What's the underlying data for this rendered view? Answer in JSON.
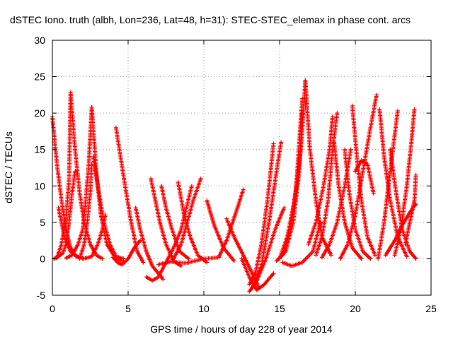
{
  "chart_data": {
    "type": "scatter",
    "title": "dSTEC Iono. truth (albh, Lon=236, Lat=48, h=31): STEC-STEC_elemax in phase cont. arcs",
    "xlabel": "GPS time / hours of day 228 of year 2014",
    "ylabel": "dSTEC  / TECUs",
    "xlim": [
      0,
      25
    ],
    "ylim": [
      -5,
      30
    ],
    "xticks": [
      0,
      5,
      10,
      15,
      20,
      25
    ],
    "yticks": [
      -5,
      0,
      5,
      10,
      15,
      20,
      25,
      30
    ],
    "xtick_labels": [
      "0",
      "5",
      "10",
      "15",
      "20",
      "25"
    ],
    "ytick_labels": [
      "-5",
      "0",
      "5",
      "10",
      "15",
      "20",
      "25",
      "30"
    ],
    "grid": true,
    "marker": "plus",
    "color": "#ff0000",
    "series": [
      {
        "points": [
          [
            0.0,
            19.5
          ],
          [
            0.3,
            13
          ],
          [
            0.6,
            8
          ],
          [
            0.9,
            4
          ],
          [
            1.2,
            1.5
          ],
          [
            1.5,
            0.5
          ],
          [
            1.8,
            0.1
          ]
        ]
      },
      {
        "points": [
          [
            0.1,
            0
          ],
          [
            0.4,
            0.3
          ],
          [
            0.7,
            0.8
          ],
          [
            0.9,
            2
          ],
          [
            1.1,
            5
          ],
          [
            1.3,
            9
          ],
          [
            1.5,
            12
          ]
        ]
      },
      {
        "points": [
          [
            0.3,
            0.1
          ],
          [
            0.6,
            2
          ],
          [
            0.9,
            5.5
          ],
          [
            1.1,
            11
          ],
          [
            1.15,
            16
          ],
          [
            1.2,
            22.8
          ]
        ]
      },
      {
        "points": [
          [
            0.4,
            7
          ],
          [
            0.8,
            3
          ],
          [
            1.2,
            1
          ],
          [
            1.6,
            0.3
          ],
          [
            2.0,
            0.1
          ]
        ]
      },
      {
        "points": [
          [
            1.2,
            22.8
          ],
          [
            1.5,
            15
          ],
          [
            1.8,
            9
          ],
          [
            2.1,
            5
          ],
          [
            2.5,
            2
          ],
          [
            2.9,
            0.5
          ],
          [
            3.3,
            0
          ]
        ]
      },
      {
        "points": [
          [
            0.9,
            0.1
          ],
          [
            1.3,
            0.5
          ],
          [
            1.7,
            2
          ],
          [
            2.0,
            4
          ],
          [
            2.2,
            8
          ],
          [
            2.4,
            13
          ],
          [
            2.6,
            20.8
          ]
        ]
      },
      {
        "points": [
          [
            1.8,
            0
          ],
          [
            2.1,
            2
          ],
          [
            2.3,
            5
          ],
          [
            2.5,
            9
          ],
          [
            2.6,
            13
          ]
        ]
      },
      {
        "points": [
          [
            2.6,
            20.8
          ],
          [
            2.9,
            12
          ],
          [
            3.2,
            6
          ],
          [
            3.6,
            2
          ],
          [
            4.1,
            0.3
          ],
          [
            4.6,
            -0.3
          ]
        ]
      },
      {
        "points": [
          [
            2.0,
            0
          ],
          [
            2.6,
            0.3
          ],
          [
            3.0,
            2
          ],
          [
            3.3,
            4
          ],
          [
            3.5,
            6
          ]
        ]
      },
      {
        "points": [
          [
            2.7,
            14
          ],
          [
            3.0,
            10
          ],
          [
            3.4,
            5
          ],
          [
            3.8,
            2
          ],
          [
            4.2,
            0.3
          ],
          [
            4.7,
            0
          ]
        ]
      },
      {
        "points": [
          [
            4.2,
            18
          ],
          [
            4.5,
            14
          ],
          [
            4.8,
            10
          ],
          [
            5.2,
            5
          ],
          [
            5.6,
            1
          ],
          [
            6.0,
            -0.5
          ]
        ]
      },
      {
        "points": [
          [
            4.0,
            0.2
          ],
          [
            4.3,
            -0.5
          ],
          [
            4.6,
            -0.8
          ],
          [
            5.0,
            0
          ],
          [
            5.4,
            1.5
          ],
          [
            5.8,
            2.5
          ]
        ]
      },
      {
        "points": [
          [
            5.5,
            7
          ],
          [
            5.8,
            4
          ],
          [
            6.2,
            1
          ],
          [
            6.6,
            -1
          ],
          [
            7.0,
            -2
          ],
          [
            7.3,
            -2.8
          ]
        ]
      },
      {
        "points": [
          [
            6.2,
            -2.5
          ],
          [
            6.6,
            -3
          ],
          [
            7.0,
            -2.5
          ],
          [
            7.5,
            -0.5
          ],
          [
            8.0,
            1.5
          ],
          [
            8.5,
            4
          ],
          [
            9.2,
            10
          ]
        ]
      },
      {
        "points": [
          [
            6.5,
            11
          ],
          [
            6.8,
            8
          ],
          [
            7.1,
            5
          ],
          [
            7.5,
            2
          ],
          [
            8.0,
            -0.3
          ],
          [
            8.5,
            -1
          ]
        ]
      },
      {
        "points": [
          [
            7.2,
            10
          ],
          [
            7.5,
            7
          ],
          [
            7.9,
            4
          ],
          [
            8.4,
            1
          ],
          [
            9.0,
            0
          ]
        ]
      },
      {
        "points": [
          [
            8.0,
            0
          ],
          [
            8.5,
            2
          ],
          [
            8.9,
            5
          ],
          [
            9.3,
            8
          ],
          [
            9.8,
            11
          ]
        ]
      },
      {
        "points": [
          [
            8.3,
            10.5
          ],
          [
            8.7,
            6
          ],
          [
            9.1,
            3
          ],
          [
            9.6,
            0.5
          ],
          [
            10.2,
            -0.5
          ]
        ]
      },
      {
        "points": [
          [
            7.0,
            -0.8
          ],
          [
            7.8,
            -0.4
          ],
          [
            8.8,
            -0.6
          ],
          [
            10.0,
            0
          ],
          [
            11.0,
            0.2
          ]
        ]
      },
      {
        "points": [
          [
            10.2,
            8
          ],
          [
            10.7,
            4.5
          ],
          [
            11.3,
            1.5
          ],
          [
            12.0,
            -0.3
          ]
        ]
      },
      {
        "points": [
          [
            11.0,
            0.3
          ],
          [
            11.5,
            2.5
          ],
          [
            11.9,
            5
          ],
          [
            12.3,
            7.5
          ],
          [
            12.6,
            9.5
          ]
        ]
      },
      {
        "points": [
          [
            11.5,
            5.5
          ],
          [
            12.0,
            3
          ],
          [
            12.6,
            0.5
          ],
          [
            13.2,
            -2
          ],
          [
            13.6,
            -3.8
          ]
        ]
      },
      {
        "points": [
          [
            12.5,
            0
          ],
          [
            13.0,
            -2.5
          ],
          [
            13.5,
            -4.3
          ],
          [
            14.0,
            -3.5
          ],
          [
            14.6,
            -2
          ]
        ]
      },
      {
        "points": [
          [
            13.0,
            -3.5
          ],
          [
            13.4,
            -2
          ],
          [
            13.8,
            2
          ],
          [
            14.2,
            8
          ],
          [
            14.6,
            15.8
          ]
        ]
      },
      {
        "points": [
          [
            13.2,
            -4
          ],
          [
            13.8,
            -1
          ],
          [
            14.3,
            5
          ],
          [
            14.8,
            12
          ],
          [
            15.1,
            16
          ]
        ]
      },
      {
        "points": [
          [
            13.0,
            -4.5
          ],
          [
            13.5,
            -3
          ],
          [
            14.1,
            0
          ],
          [
            14.7,
            4
          ],
          [
            15.3,
            7
          ]
        ]
      },
      {
        "points": [
          [
            15.0,
            0
          ],
          [
            15.5,
            3
          ],
          [
            16.0,
            8
          ],
          [
            16.4,
            15
          ],
          [
            16.6,
            21
          ],
          [
            16.7,
            24.5
          ]
        ]
      },
      {
        "points": [
          [
            14.8,
            -0.3
          ],
          [
            15.4,
            1
          ],
          [
            15.9,
            5
          ],
          [
            16.3,
            12
          ],
          [
            16.5,
            20
          ]
        ]
      },
      {
        "points": [
          [
            15.2,
            0.5
          ],
          [
            15.7,
            4
          ],
          [
            16.1,
            10
          ],
          [
            16.3,
            16
          ],
          [
            16.5,
            22
          ]
        ]
      },
      {
        "points": [
          [
            16.7,
            24.5
          ],
          [
            17.0,
            15
          ],
          [
            17.4,
            8
          ],
          [
            17.8,
            3
          ],
          [
            18.4,
            0.5
          ]
        ]
      },
      {
        "points": [
          [
            15.2,
            -0.5
          ],
          [
            15.8,
            -1
          ],
          [
            16.5,
            -0.5
          ],
          [
            17.2,
            1
          ],
          [
            17.7,
            5
          ]
        ]
      },
      {
        "points": [
          [
            17.4,
            0.5
          ],
          [
            17.8,
            3
          ],
          [
            18.2,
            8
          ],
          [
            18.5,
            15
          ],
          [
            18.8,
            20
          ]
        ]
      },
      {
        "points": [
          [
            16.9,
            2
          ],
          [
            17.4,
            5
          ],
          [
            17.9,
            10
          ],
          [
            18.3,
            15
          ],
          [
            18.5,
            19.5
          ]
        ]
      },
      {
        "points": [
          [
            18.6,
            16
          ],
          [
            18.9,
            10
          ],
          [
            19.3,
            5
          ],
          [
            19.8,
            1.5
          ],
          [
            20.4,
            0
          ]
        ]
      },
      {
        "points": [
          [
            17.8,
            0.2
          ],
          [
            18.3,
            2
          ],
          [
            18.8,
            5
          ],
          [
            19.3,
            10
          ],
          [
            19.7,
            15
          ]
        ]
      },
      {
        "points": [
          [
            19.3,
            15
          ],
          [
            19.6,
            9
          ],
          [
            20.0,
            4
          ],
          [
            20.5,
            1
          ],
          [
            21.0,
            0
          ]
        ]
      },
      {
        "points": [
          [
            19.0,
            0
          ],
          [
            19.5,
            2
          ],
          [
            20.0,
            6
          ],
          [
            20.5,
            12
          ],
          [
            21.0,
            18
          ],
          [
            21.4,
            22.5
          ]
        ]
      },
      {
        "points": [
          [
            19.8,
            21
          ],
          [
            20.1,
            14
          ],
          [
            20.4,
            8
          ],
          [
            20.8,
            3
          ],
          [
            21.3,
            0.5
          ]
        ]
      },
      {
        "points": [
          [
            20.0,
            12
          ],
          [
            20.4,
            13.5
          ],
          [
            20.8,
            13
          ],
          [
            21.2,
            9
          ]
        ]
      },
      {
        "points": [
          [
            21.5,
            0
          ],
          [
            21.9,
            5
          ],
          [
            22.3,
            12
          ],
          [
            22.6,
            17
          ],
          [
            22.8,
            20.3
          ]
        ]
      },
      {
        "points": [
          [
            21.6,
            20.5
          ],
          [
            21.9,
            14
          ],
          [
            22.3,
            8
          ],
          [
            22.8,
            3
          ],
          [
            23.4,
            0.3
          ]
        ]
      },
      {
        "points": [
          [
            22.3,
            15
          ],
          [
            22.7,
            9
          ],
          [
            23.1,
            4
          ],
          [
            23.6,
            1
          ],
          [
            24.0,
            0
          ]
        ]
      },
      {
        "points": [
          [
            22.6,
            0.5
          ],
          [
            23.0,
            4
          ],
          [
            23.4,
            10
          ],
          [
            23.7,
            16
          ],
          [
            23.9,
            20.5
          ]
        ]
      },
      {
        "points": [
          [
            23.3,
            2
          ],
          [
            23.6,
            5
          ],
          [
            23.9,
            8
          ],
          [
            24.0,
            11.5
          ]
        ]
      },
      {
        "points": [
          [
            22.0,
            0.5
          ],
          [
            22.6,
            2.5
          ],
          [
            23.2,
            5
          ],
          [
            23.8,
            7
          ],
          [
            24.0,
            7.5
          ]
        ]
      }
    ]
  }
}
